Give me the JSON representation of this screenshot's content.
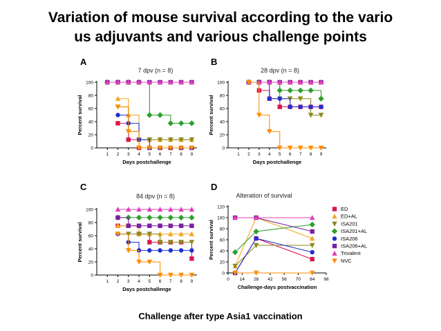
{
  "slide": {
    "title_line1": "Variation of mouse survival according to the vario",
    "title_line2": "us adjuvants and various challenge points",
    "caption": "Challenge after type Asia1 vaccination"
  },
  "colors": {
    "ED": "#d9174e",
    "ED+AL": "#f5a623",
    "ISA201": "#8b8b1a",
    "ISA201+AL": "#2ca02c",
    "ISA206": "#1f2fd1",
    "ISA206+AL": "#7b1fa2",
    "Trivalent": "#e040b8",
    "NVC": "#ff8c00"
  },
  "chart_data": [
    {
      "panel": "A",
      "type": "line",
      "step": true,
      "title": "7 dpv (n = 8)",
      "xlabel": "Days postchallenge",
      "ylabel": "Percent survival",
      "xlim": [
        0,
        9.5
      ],
      "ylim": [
        0,
        100
      ],
      "xticks": [
        1,
        2,
        3,
        4,
        5,
        6,
        7,
        8,
        9
      ],
      "yticks": [
        0,
        20,
        40,
        60,
        80,
        100
      ],
      "xticklabels": [
        "1",
        "2",
        "3",
        "4",
        "5",
        "6",
        "7",
        "8",
        "9"
      ],
      "yticklabels": [
        "0",
        "20",
        "40",
        "60",
        "80",
        "100"
      ],
      "series": [
        {
          "name": "ED",
          "x": [
            2,
            3,
            4,
            5,
            6,
            7,
            8,
            9
          ],
          "y": [
            37.5,
            12.5,
            0,
            0,
            0,
            0,
            0,
            0
          ]
        },
        {
          "name": "ED+AL",
          "x": [
            2,
            3,
            4,
            5,
            6,
            7,
            8,
            9
          ],
          "y": [
            75,
            50,
            12.5,
            12.5,
            12.5,
            12.5,
            12.5,
            12.5
          ]
        },
        {
          "name": "ISA201",
          "x": [
            2,
            3,
            4,
            5,
            6,
            7,
            8,
            9
          ],
          "y": [
            62.5,
            25,
            12.5,
            12.5,
            12.5,
            12.5,
            12.5,
            12.5
          ]
        },
        {
          "name": "ISA201+AL",
          "x": [
            1,
            2,
            3,
            4,
            5,
            6,
            7,
            8,
            9
          ],
          "y": [
            100,
            100,
            100,
            100,
            50,
            50,
            37.5,
            37.5,
            37.5
          ]
        },
        {
          "name": "ISA206",
          "x": [
            2,
            3,
            4,
            5,
            6,
            7,
            8,
            9
          ],
          "y": [
            50,
            37.5,
            12.5,
            0,
            0,
            0,
            0,
            0
          ]
        },
        {
          "name": "ISA206+AL",
          "x": [
            1,
            2,
            3,
            4,
            5,
            6,
            7,
            8,
            9
          ],
          "y": [
            100,
            100,
            100,
            100,
            100,
            100,
            100,
            100,
            100
          ]
        },
        {
          "name": "Trivalent",
          "x": [
            1,
            2,
            3,
            4,
            5,
            6,
            7,
            8,
            9
          ],
          "y": [
            100,
            100,
            100,
            100,
            100,
            100,
            100,
            100,
            100
          ]
        },
        {
          "name": "NVC",
          "x": [
            2,
            3,
            4,
            5,
            6,
            7,
            8,
            9
          ],
          "y": [
            62.5,
            25,
            0,
            0,
            0,
            0,
            0,
            0
          ]
        }
      ]
    },
    {
      "panel": "B",
      "type": "line",
      "step": true,
      "title": "28 dpv (n = 8)",
      "xlabel": "Days postchallenge",
      "ylabel": "Percent survival",
      "xlim": [
        0,
        9.5
      ],
      "ylim": [
        0,
        100
      ],
      "xticks": [
        1,
        2,
        3,
        4,
        5,
        6,
        7,
        8,
        9
      ],
      "yticks": [
        0,
        20,
        40,
        60,
        80,
        100
      ],
      "xticklabels": [
        "1",
        "2",
        "3",
        "4",
        "5",
        "6",
        "7",
        "8",
        "9"
      ],
      "yticklabels": [
        "0",
        "20",
        "40",
        "60",
        "80",
        "100"
      ],
      "series": [
        {
          "name": "ED",
          "x": [
            2,
            3,
            4,
            5,
            6,
            7,
            8,
            9
          ],
          "y": [
            100,
            87.5,
            75,
            62.5,
            62.5,
            62.5,
            62.5,
            62.5
          ]
        },
        {
          "name": "ED+AL",
          "x": [
            2,
            3,
            4,
            5,
            6,
            7,
            8,
            9
          ],
          "y": [
            100,
            100,
            100,
            100,
            100,
            100,
            100,
            100
          ]
        },
        {
          "name": "ISA201",
          "x": [
            2,
            3,
            4,
            5,
            6,
            7,
            8,
            9
          ],
          "y": [
            100,
            100,
            100,
            75,
            75,
            75,
            50,
            50
          ]
        },
        {
          "name": "ISA201+AL",
          "x": [
            2,
            3,
            4,
            5,
            6,
            7,
            8,
            9
          ],
          "y": [
            100,
            100,
            100,
            87.5,
            87.5,
            87.5,
            87.5,
            75
          ]
        },
        {
          "name": "ISA206",
          "x": [
            2,
            3,
            4,
            5,
            6,
            7,
            8,
            9
          ],
          "y": [
            100,
            100,
            75,
            75,
            62.5,
            62.5,
            62.5,
            62.5
          ]
        },
        {
          "name": "ISA206+AL",
          "x": [
            2,
            3,
            4,
            5,
            6,
            7,
            8,
            9
          ],
          "y": [
            100,
            100,
            100,
            100,
            100,
            100,
            100,
            100
          ]
        },
        {
          "name": "Trivalent",
          "x": [
            2,
            3,
            4,
            5,
            6,
            7,
            8,
            9
          ],
          "y": [
            100,
            100,
            100,
            100,
            100,
            100,
            100,
            100
          ]
        },
        {
          "name": "NVC",
          "x": [
            2,
            3,
            4,
            5,
            6,
            7,
            8,
            9
          ],
          "y": [
            100,
            50,
            25,
            0,
            0,
            0,
            0,
            0
          ]
        }
      ]
    },
    {
      "panel": "C",
      "type": "line",
      "step": true,
      "title": "84 dpv (n = 8)",
      "xlabel": "Days postchallenge",
      "ylabel": "Percent survival",
      "xlim": [
        0,
        9.5
      ],
      "ylim": [
        0,
        100
      ],
      "xticks": [
        1,
        2,
        3,
        4,
        5,
        6,
        7,
        8,
        9
      ],
      "yticks": [
        0,
        20,
        40,
        60,
        80,
        100
      ],
      "xticklabels": [
        "1",
        "2",
        "3",
        "4",
        "5",
        "6",
        "7",
        "8",
        "9"
      ],
      "yticklabels": [
        "0",
        "20",
        "40",
        "60",
        "80",
        "100"
      ],
      "series": [
        {
          "name": "ED",
          "x": [
            2,
            3,
            4,
            5,
            6,
            7,
            8,
            9
          ],
          "y": [
            75,
            75,
            62.5,
            50,
            50,
            50,
            50,
            25
          ]
        },
        {
          "name": "ED+AL",
          "x": [
            2,
            3,
            4,
            5,
            6,
            7,
            8,
            9
          ],
          "y": [
            75,
            75,
            62.5,
            62.5,
            62.5,
            62.5,
            62.5,
            62.5
          ]
        },
        {
          "name": "ISA201",
          "x": [
            2,
            3,
            4,
            5,
            6,
            7,
            8,
            9
          ],
          "y": [
            62.5,
            62.5,
            62.5,
            62.5,
            50,
            50,
            50,
            50
          ]
        },
        {
          "name": "ISA201+AL",
          "x": [
            2,
            3,
            4,
            5,
            6,
            7,
            8,
            9
          ],
          "y": [
            87.5,
            87.5,
            87.5,
            87.5,
            87.5,
            87.5,
            87.5,
            87.5
          ]
        },
        {
          "name": "ISA206",
          "x": [
            2,
            3,
            4,
            5,
            6,
            7,
            8,
            9
          ],
          "y": [
            62.5,
            50,
            37.5,
            37.5,
            37.5,
            37.5,
            37.5,
            37.5
          ]
        },
        {
          "name": "ISA206+AL",
          "x": [
            2,
            3,
            4,
            5,
            6,
            7,
            8,
            9
          ],
          "y": [
            87.5,
            75,
            75,
            75,
            75,
            75,
            75,
            75
          ]
        },
        {
          "name": "Trivalent",
          "x": [
            2,
            3,
            4,
            5,
            6,
            7,
            8,
            9
          ],
          "y": [
            100,
            100,
            100,
            100,
            100,
            100,
            100,
            100
          ]
        },
        {
          "name": "NVC",
          "x": [
            2,
            3,
            4,
            5,
            6,
            7,
            8,
            9
          ],
          "y": [
            62.5,
            37.5,
            20,
            20,
            0,
            0,
            0,
            0
          ]
        }
      ]
    },
    {
      "panel": "D",
      "type": "line",
      "step": false,
      "title": "Alteration of survival",
      "xlabel": "Challenge-days postvaccination",
      "ylabel": "Percent survival",
      "xlim": [
        0,
        98
      ],
      "ylim": [
        0,
        120
      ],
      "xticks": [
        0,
        14,
        28,
        42,
        56,
        70,
        84,
        98
      ],
      "yticks": [
        0,
        20,
        40,
        60,
        80,
        100,
        120
      ],
      "xticklabels": [
        "0",
        "14",
        "28",
        "42",
        "56",
        "70",
        "84",
        "98"
      ],
      "yticklabels": [
        "0",
        "20",
        "40",
        "60",
        "80",
        "100",
        "120"
      ],
      "legend_position": "right",
      "series": [
        {
          "name": "ED",
          "x": [
            7,
            28,
            84
          ],
          "y": [
            0,
            62.5,
            25
          ]
        },
        {
          "name": "ED+AL",
          "x": [
            7,
            28,
            84
          ],
          "y": [
            12.5,
            100,
            62.5
          ]
        },
        {
          "name": "ISA201",
          "x": [
            7,
            28,
            84
          ],
          "y": [
            12.5,
            50,
            50
          ]
        },
        {
          "name": "ISA201+AL",
          "x": [
            7,
            28,
            84
          ],
          "y": [
            37.5,
            75,
            87.5
          ]
        },
        {
          "name": "ISA206",
          "x": [
            7,
            28,
            84
          ],
          "y": [
            0,
            62.5,
            37.5
          ]
        },
        {
          "name": "ISA206+AL",
          "x": [
            7,
            28,
            84
          ],
          "y": [
            100,
            100,
            75
          ]
        },
        {
          "name": "Trivalent",
          "x": [
            7,
            28,
            84
          ],
          "y": [
            100,
            100,
            100
          ]
        },
        {
          "name": "NVC",
          "x": [
            7,
            28,
            84
          ],
          "y": [
            0,
            0,
            0
          ]
        }
      ]
    }
  ],
  "markers": {
    "ED": "square",
    "ED+AL": "triangle-up",
    "ISA201": "triangle-down",
    "ISA201+AL": "diamond",
    "ISA206": "circle",
    "ISA206+AL": "square",
    "Trivalent": "triangle-up",
    "NVC": "triangle-down"
  }
}
